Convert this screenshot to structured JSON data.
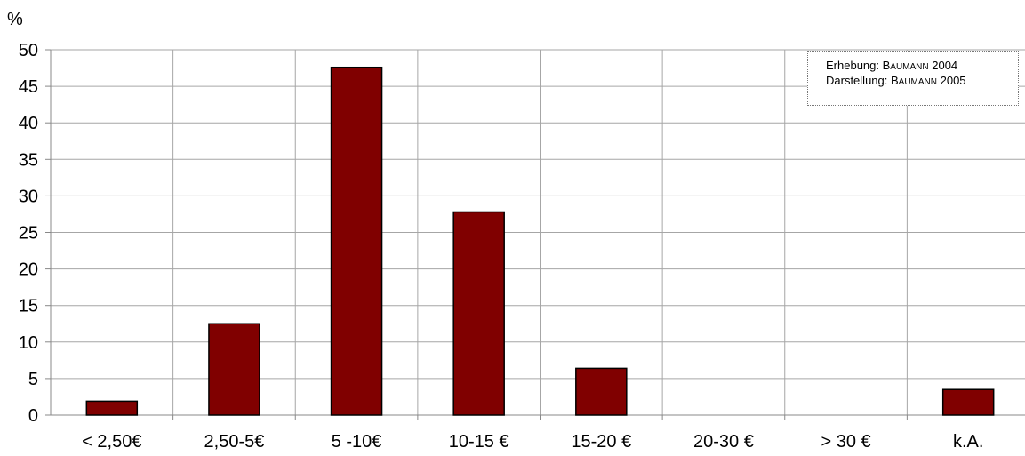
{
  "note": {
    "line1_prefix": "Erhebung: ",
    "line1_name_first": "B",
    "line1_name_rest": "AUMANN",
    "line1_year": " 2004",
    "line2_prefix": "Darstellung: ",
    "line2_name_first": "B",
    "line2_name_rest": "AUMANN",
    "line2_year": " 2005"
  },
  "chart_data": {
    "type": "bar",
    "title": "",
    "xlabel": "",
    "ylabel": "%",
    "ylim": [
      0,
      50
    ],
    "yticks": [
      0,
      5,
      10,
      15,
      20,
      25,
      30,
      35,
      40,
      45,
      50
    ],
    "categories": [
      "< 2,50€",
      "2,50-5€",
      "5 -10€",
      "10-15 €",
      "15-20 €",
      "20-30 €",
      "> 30 €",
      "k.A."
    ],
    "values": [
      1.9,
      12.5,
      47.6,
      27.8,
      6.4,
      0,
      0,
      3.5
    ],
    "grid": true,
    "bar_color": "#800000"
  }
}
